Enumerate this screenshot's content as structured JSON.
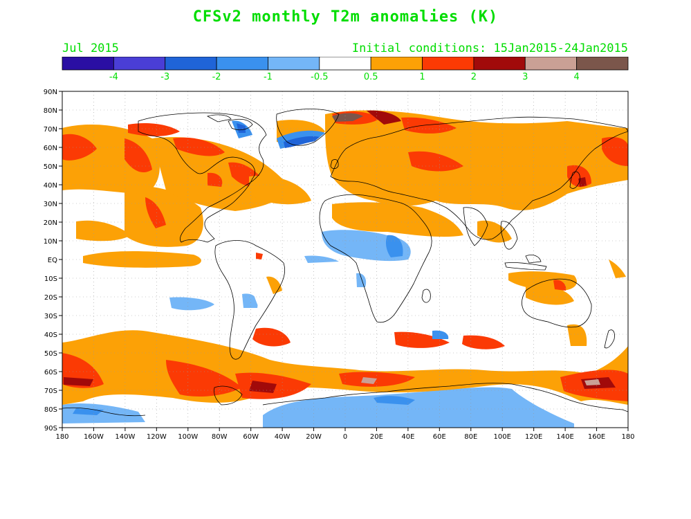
{
  "title": "CFSv2 monthly T2m anomalies (K)",
  "month": "Jul 2015",
  "init_conditions": "Initial conditions: 15Jan2015-24Jan2015",
  "colorbar": {
    "colors": [
      "#2a0fa3",
      "#4a3ed6",
      "#1f64d8",
      "#3a91ee",
      "#74b6f7",
      "#ffffff",
      "#fca106",
      "#fb3a04",
      "#a10a0a",
      "#caa095",
      "#7b564b"
    ],
    "labels": [
      "-4",
      "-3",
      "-2",
      "-1",
      "-0.5",
      "0.5",
      "1",
      "2",
      "3",
      "4"
    ]
  },
  "lat_labels": [
    "90N",
    "80N",
    "70N",
    "60N",
    "50N",
    "40N",
    "30N",
    "20N",
    "10N",
    "EQ",
    "10S",
    "20S",
    "30S",
    "40S",
    "50S",
    "60S",
    "70S",
    "80S",
    "90S"
  ],
  "lon_labels": [
    "180",
    "160W",
    "140W",
    "120W",
    "100W",
    "80W",
    "60W",
    "40W",
    "20W",
    "0",
    "20E",
    "40E",
    "60E",
    "80E",
    "100E",
    "120E",
    "140E",
    "160E",
    "180"
  ]
}
